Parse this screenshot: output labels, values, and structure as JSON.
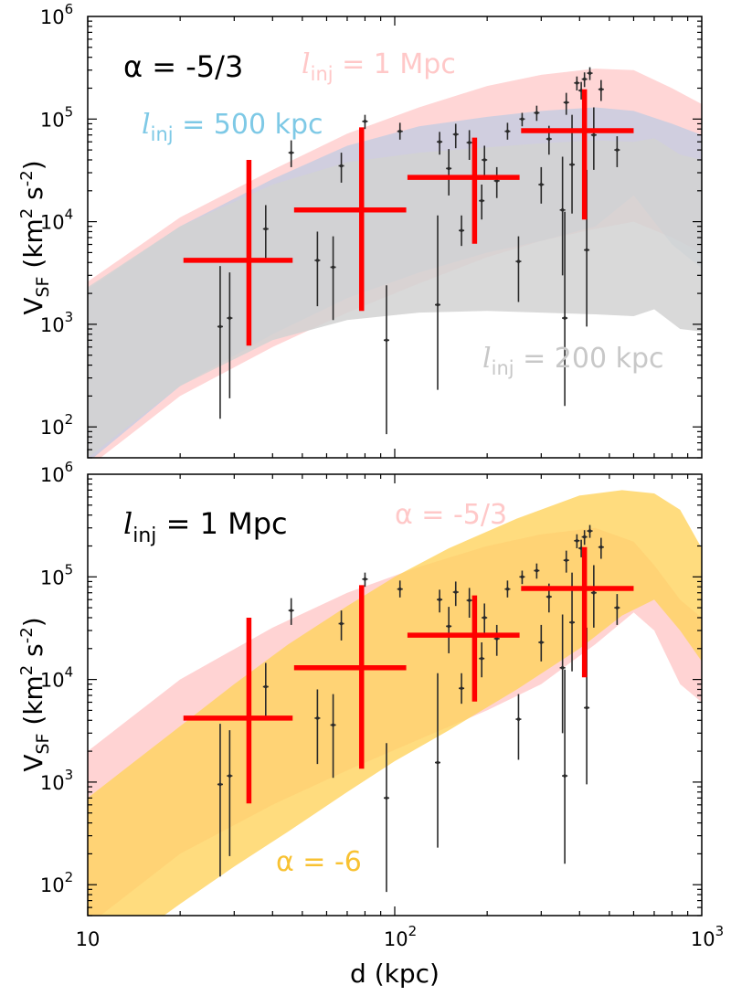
{
  "figure": {
    "xlabel": "d (kpc)",
    "ylabel_main": "V",
    "ylabel_sub": "SF",
    "ylabel_units_open": " (km",
    "ylabel_units_sup1": "2",
    "ylabel_units_mid": " s",
    "ylabel_units_sup2": "-2",
    "ylabel_units_close": ")",
    "x_tick_labels": [
      {
        "base": "10",
        "exp": ""
      },
      {
        "base": "10",
        "exp": "2"
      },
      {
        "base": "10",
        "exp": "3"
      }
    ],
    "y_tick_labels": [
      {
        "base": "10",
        "exp": "2"
      },
      {
        "base": "10",
        "exp": "3"
      },
      {
        "base": "10",
        "exp": "4"
      },
      {
        "base": "10",
        "exp": "5"
      },
      {
        "base": "10",
        "exp": "6"
      }
    ],
    "colors": {
      "pink": "#ffc8c8",
      "blue": "#a9c8e8",
      "gray": "#d2d2d2",
      "orange": "#ffc079",
      "yellow": "#ffd35e",
      "binned": "#ff0000",
      "points": "#2a2a2a"
    }
  },
  "chart_data": [
    {
      "type": "scatter",
      "title": "α = -5/3",
      "xscale": "log",
      "yscale": "log",
      "xlim": [
        10,
        1000
      ],
      "ylim": [
        50,
        1000000
      ],
      "bands": [
        {
          "name": "l_inj = 1 Mpc",
          "label_italic": "l",
          "label_sub": "inj",
          "label_rest": " = 1 Mpc",
          "color": "#ffc8c8",
          "opacity": 0.75,
          "x": [
            10,
            20,
            40,
            70,
            120,
            200,
            300,
            450,
            600,
            800,
            1000
          ],
          "upper": [
            2600,
            11000,
            32000,
            72000,
            130000,
            210000,
            270000,
            310000,
            300000,
            200000,
            140000
          ],
          "lower": [
            40,
            200,
            600,
            1300,
            2500,
            4500,
            6500,
            8500,
            10000,
            7000,
            5000
          ]
        },
        {
          "name": "l_inj = 500 kpc",
          "label_italic": "l",
          "label_sub": "inj",
          "label_rest": " = 500 kpc",
          "color": "#a9c8e8",
          "opacity": 0.55,
          "x": [
            10,
            20,
            40,
            70,
            120,
            200,
            300,
            450,
            600,
            800,
            1000
          ],
          "upper": [
            2200,
            9000,
            26000,
            55000,
            85000,
            105000,
            120000,
            130000,
            120000,
            90000,
            70000
          ],
          "lower": [
            45,
            250,
            800,
            1800,
            3200,
            5000,
            6500,
            9000,
            18000,
            6000,
            3500
          ]
        },
        {
          "name": "l_inj = 200 kpc",
          "label_italic": "l",
          "label_sub": "inj",
          "label_rest": " = 200 kpc",
          "color": "#d2d2d2",
          "opacity": 0.85,
          "x": [
            10,
            20,
            40,
            70,
            120,
            200,
            300,
            450,
            600,
            700,
            850,
            1000
          ],
          "upper": [
            2300,
            9000,
            23000,
            38000,
            47000,
            53000,
            58000,
            62000,
            60000,
            65000,
            45000,
            40000
          ],
          "lower": [
            50,
            250,
            700,
            1100,
            1300,
            1350,
            1300,
            1250,
            1200,
            1400,
            900,
            850
          ]
        }
      ],
      "label_positions": [
        "top-center",
        "upper-left",
        "lower-right"
      ]
    },
    {
      "type": "scatter",
      "title": "l_inj = 1 Mpc",
      "title_italic": "l",
      "title_sub": "inj",
      "title_rest": " = 1 Mpc",
      "xscale": "log",
      "yscale": "log",
      "xlim": [
        10,
        1000
      ],
      "ylim": [
        50,
        1000000
      ],
      "bands": [
        {
          "name": "α = -5/3",
          "label": "α = -5/3",
          "color": "#ffc8c8",
          "opacity": 0.8,
          "x": [
            10,
            20,
            40,
            70,
            120,
            200,
            300,
            450,
            600,
            700,
            850,
            1000
          ],
          "upper": [
            2000,
            10000,
            32000,
            70000,
            125000,
            200000,
            260000,
            300000,
            220000,
            130000,
            60000,
            40000
          ],
          "lower": [
            40,
            200,
            600,
            1300,
            2600,
            5000,
            9000,
            22000,
            45000,
            30000,
            9000,
            6000
          ]
        },
        {
          "name": "α = -6",
          "label": "α = -6",
          "color": "#ffd35e",
          "opacity": 0.8,
          "x": [
            10,
            15,
            20,
            30,
            45,
            70,
            100,
            150,
            250,
            400,
            550,
            700,
            850,
            1000
          ],
          "upper": [
            700,
            1800,
            3500,
            9000,
            22000,
            52000,
            100000,
            190000,
            370000,
            620000,
            700000,
            650000,
            450000,
            190000
          ],
          "lower": [
            15,
            35,
            65,
            150,
            330,
            800,
            1600,
            3200,
            8000,
            20000,
            42000,
            60000,
            30000,
            15000
          ]
        }
      ],
      "label_positions": [
        "top-center",
        "bottom-left"
      ]
    }
  ],
  "shared_series": {
    "binned": {
      "name": "binned means",
      "points": [
        {
          "x": 33.5,
          "y": 4200,
          "xlo": 20.5,
          "xhi": 46.5,
          "ylo": 620,
          "yhi": 40000
        },
        {
          "x": 78,
          "y": 13000,
          "xlo": 47,
          "xhi": 109,
          "ylo": 1350,
          "yhi": 83000
        },
        {
          "x": 182,
          "y": 27000,
          "xlo": 110,
          "xhi": 255,
          "ylo": 6100,
          "yhi": 66000
        },
        {
          "x": 415,
          "y": 77000,
          "xlo": 258,
          "xhi": 600,
          "ylo": 10500,
          "yhi": 195000
        }
      ]
    },
    "measurements": {
      "name": "individual measurements",
      "points": [
        {
          "x": 27,
          "y": 950,
          "ylo": 120,
          "yhi": 3700
        },
        {
          "x": 29,
          "y": 1150,
          "ylo": 190,
          "yhi": 3200
        },
        {
          "x": 38,
          "y": 8500,
          "ylo": 4000,
          "yhi": 14500
        },
        {
          "x": 46,
          "y": 47000,
          "ylo": 34000,
          "yhi": 62000
        },
        {
          "x": 56,
          "y": 4200,
          "ylo": 1500,
          "yhi": 8000
        },
        {
          "x": 63,
          "y": 3600,
          "ylo": 1100,
          "yhi": 7200
        },
        {
          "x": 67,
          "y": 35000,
          "ylo": 24000,
          "yhi": 47000
        },
        {
          "x": 80,
          "y": 95000,
          "ylo": 80000,
          "yhi": 110000
        },
        {
          "x": 94,
          "y": 700,
          "ylo": 85,
          "yhi": 2400
        },
        {
          "x": 104,
          "y": 76000,
          "ylo": 63000,
          "yhi": 92000
        },
        {
          "x": 138,
          "y": 1550,
          "ylo": 230,
          "yhi": 11500
        },
        {
          "x": 140,
          "y": 60000,
          "ylo": 45000,
          "yhi": 75000
        },
        {
          "x": 150,
          "y": 33000,
          "ylo": 18000,
          "yhi": 51000
        },
        {
          "x": 158,
          "y": 71000,
          "ylo": 52000,
          "yhi": 90000
        },
        {
          "x": 165,
          "y": 8200,
          "ylo": 5800,
          "yhi": 11500
        },
        {
          "x": 175,
          "y": 59000,
          "ylo": 40000,
          "yhi": 78000
        },
        {
          "x": 192,
          "y": 16000,
          "ylo": 10500,
          "yhi": 23000
        },
        {
          "x": 196,
          "y": 40000,
          "ylo": 27000,
          "yhi": 55000
        },
        {
          "x": 215,
          "y": 25000,
          "ylo": 17000,
          "yhi": 34000
        },
        {
          "x": 233,
          "y": 76000,
          "ylo": 63000,
          "yhi": 92000
        },
        {
          "x": 253,
          "y": 4100,
          "ylo": 1650,
          "yhi": 7200
        },
        {
          "x": 260,
          "y": 100000,
          "ylo": 85000,
          "yhi": 115000
        },
        {
          "x": 290,
          "y": 115000,
          "ylo": 96000,
          "yhi": 135000
        },
        {
          "x": 300,
          "y": 23000,
          "ylo": 15000,
          "yhi": 34000
        },
        {
          "x": 318,
          "y": 64000,
          "ylo": 45000,
          "yhi": 86000
        },
        {
          "x": 352,
          "y": 13000,
          "ylo": 3000,
          "yhi": 43000
        },
        {
          "x": 358,
          "y": 1150,
          "ylo": 160,
          "yhi": 12500
        },
        {
          "x": 362,
          "y": 145000,
          "ylo": 110000,
          "yhi": 180000
        },
        {
          "x": 378,
          "y": 36000,
          "ylo": 12000,
          "yhi": 110000
        },
        {
          "x": 392,
          "y": 225000,
          "ylo": 190000,
          "yhi": 260000
        },
        {
          "x": 405,
          "y": 190000,
          "ylo": 155000,
          "yhi": 230000
        },
        {
          "x": 415,
          "y": 245000,
          "ylo": 205000,
          "yhi": 285000
        },
        {
          "x": 422,
          "y": 5300,
          "ylo": 950,
          "yhi": 32000
        },
        {
          "x": 432,
          "y": 280000,
          "ylo": 240000,
          "yhi": 320000
        },
        {
          "x": 445,
          "y": 70000,
          "ylo": 32000,
          "yhi": 130000
        },
        {
          "x": 470,
          "y": 195000,
          "ylo": 150000,
          "yhi": 240000
        },
        {
          "x": 530,
          "y": 50000,
          "ylo": 34000,
          "yhi": 68000
        }
      ]
    }
  }
}
